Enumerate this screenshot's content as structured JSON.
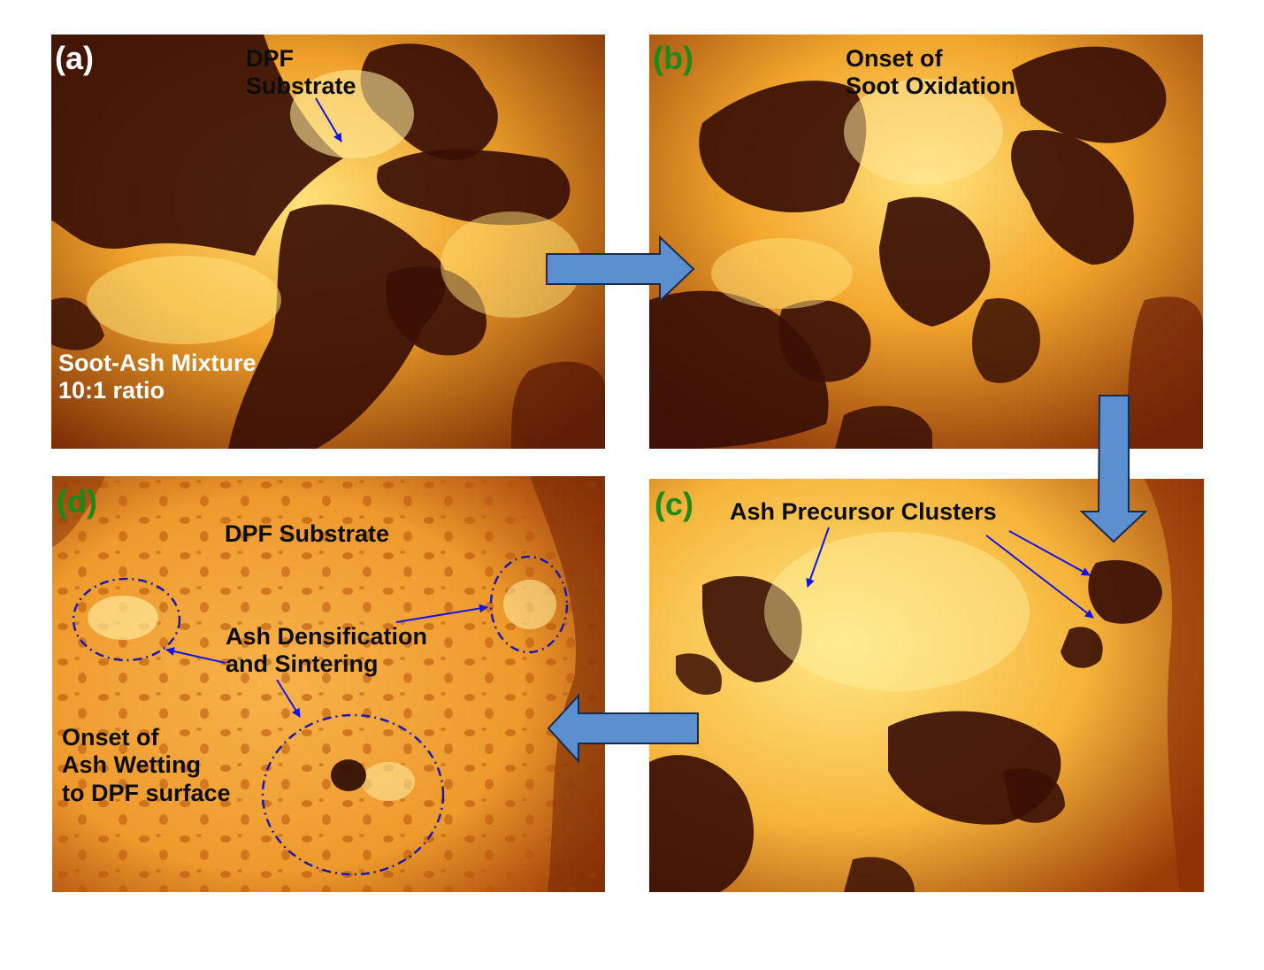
{
  "panels": {
    "a": {
      "tag": "(a)",
      "substrate_label": "DPF\nSubstrate",
      "mixture_label": "Soot-Ash Mixture\n10:1 ratio"
    },
    "b": {
      "tag": "(b)",
      "oxidation_label": "Onset of\nSoot Oxidation"
    },
    "c": {
      "tag": "(c)",
      "clusters_label": "Ash Precursor Clusters"
    },
    "d": {
      "tag": "(d)",
      "substrate_label": "DPF Substrate",
      "densification_label": "Ash Densification\nand Sintering",
      "wetting_label": "Onset of\nAsh Wetting\nto DPF surface"
    }
  },
  "colors": {
    "arrow_fill": "#5b8fd0",
    "arrow_stroke": "#1a2a4a",
    "annotation": "#1414e6",
    "tag_green": "#1a8a1a",
    "soot": "#3a0f05",
    "glow": "#ffd24a"
  }
}
